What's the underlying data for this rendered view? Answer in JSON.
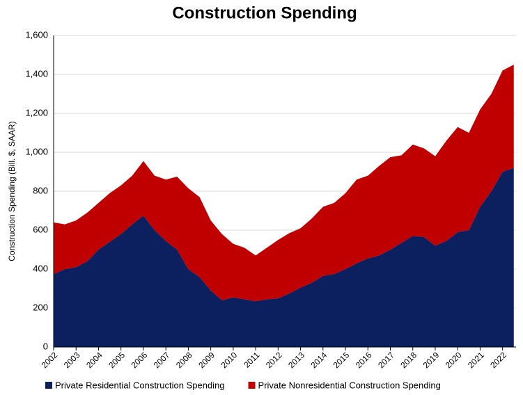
{
  "chart_data": {
    "type": "stacked_area",
    "title": "Construction Spending",
    "y_label": "Construction Spending (Bill. $, SAAR)",
    "x": [
      2002,
      2002.5,
      2003,
      2003.5,
      2004,
      2004.5,
      2005,
      2005.5,
      2006,
      2006.5,
      2007,
      2007.5,
      2008,
      2008.5,
      2009,
      2009.5,
      2010,
      2010.5,
      2011,
      2011.5,
      2012,
      2012.5,
      2013,
      2013.5,
      2014,
      2014.5,
      2015,
      2015.5,
      2016,
      2016.5,
      2017,
      2017.5,
      2018,
      2018.5,
      2019,
      2019.5,
      2020,
      2020.5,
      2021,
      2021.5,
      2022,
      2022.5
    ],
    "series": [
      {
        "name": "Private Residential Construction Spending",
        "color": "#0c1f5e",
        "values": [
          375,
          400,
          410,
          440,
          500,
          540,
          580,
          630,
          675,
          600,
          545,
          500,
          400,
          360,
          290,
          240,
          255,
          245,
          235,
          245,
          250,
          275,
          305,
          330,
          365,
          375,
          400,
          430,
          455,
          470,
          500,
          535,
          570,
          565,
          520,
          545,
          590,
          600,
          720,
          800,
          900,
          920
        ]
      },
      {
        "name": "Private Nonresidential Construction Spending",
        "color": "#c00000",
        "values": [
          265,
          230,
          240,
          250,
          240,
          250,
          250,
          250,
          280,
          280,
          315,
          375,
          415,
          410,
          360,
          340,
          275,
          265,
          235,
          265,
          300,
          310,
          305,
          330,
          355,
          365,
          390,
          430,
          425,
          460,
          475,
          450,
          470,
          455,
          460,
          515,
          540,
          500,
          500,
          500,
          520,
          530
        ]
      }
    ],
    "xlim": [
      2002,
      2022.6
    ],
    "xticks": [
      2002,
      2003,
      2004,
      2005,
      2006,
      2007,
      2008,
      2009,
      2010,
      2011,
      2012,
      2013,
      2014,
      2015,
      2016,
      2017,
      2018,
      2019,
      2020,
      2021,
      2022
    ],
    "ylim": [
      0,
      1600
    ],
    "yticks": [
      0,
      200,
      400,
      600,
      800,
      {
        "value": 1000,
        "label": "1,000"
      },
      {
        "value": 1200,
        "label": "1,200"
      },
      {
        "value": 1400,
        "label": "1,400"
      },
      {
        "value": 1600,
        "label": "1,600"
      }
    ],
    "grid": true,
    "legend": "bottom"
  }
}
